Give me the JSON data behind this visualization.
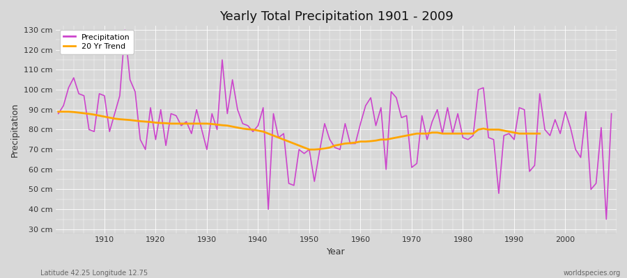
{
  "title": "Yearly Total Precipitation 1901 - 2009",
  "xlabel": "Year",
  "ylabel": "Precipitation",
  "subtitle_left": "Latitude 42.25 Longitude 12.75",
  "subtitle_right": "worldspecies.org",
  "years": [
    1901,
    1902,
    1903,
    1904,
    1905,
    1906,
    1907,
    1908,
    1909,
    1910,
    1911,
    1912,
    1913,
    1914,
    1915,
    1916,
    1917,
    1918,
    1919,
    1920,
    1921,
    1922,
    1923,
    1924,
    1925,
    1926,
    1927,
    1928,
    1929,
    1930,
    1931,
    1932,
    1933,
    1934,
    1935,
    1936,
    1937,
    1938,
    1939,
    1940,
    1941,
    1942,
    1943,
    1944,
    1945,
    1946,
    1947,
    1948,
    1949,
    1950,
    1951,
    1952,
    1953,
    1954,
    1955,
    1956,
    1957,
    1958,
    1959,
    1960,
    1961,
    1962,
    1963,
    1964,
    1965,
    1966,
    1967,
    1968,
    1969,
    1970,
    1971,
    1972,
    1973,
    1974,
    1975,
    1976,
    1977,
    1978,
    1979,
    1980,
    1981,
    1982,
    1983,
    1984,
    1985,
    1986,
    1987,
    1988,
    1989,
    1990,
    1991,
    1992,
    1993,
    1994,
    1995,
    1996,
    1997,
    1998,
    1999,
    2000,
    2001,
    2002,
    2003,
    2004,
    2005,
    2006,
    2007,
    2008,
    2009
  ],
  "precip": [
    88,
    92,
    101,
    106,
    98,
    97,
    80,
    79,
    98,
    97,
    79,
    88,
    97,
    130,
    105,
    99,
    75,
    70,
    91,
    75,
    90,
    72,
    88,
    87,
    82,
    84,
    78,
    90,
    80,
    70,
    88,
    80,
    115,
    88,
    105,
    90,
    83,
    82,
    79,
    82,
    91,
    40,
    88,
    76,
    78,
    53,
    52,
    70,
    68,
    70,
    54,
    69,
    83,
    75,
    71,
    70,
    83,
    73,
    73,
    83,
    92,
    96,
    82,
    91,
    60,
    99,
    96,
    86,
    87,
    61,
    63,
    87,
    75,
    84,
    90,
    78,
    91,
    78,
    88,
    76,
    75,
    77,
    100,
    101,
    76,
    75,
    48,
    77,
    78,
    75,
    91,
    90,
    59,
    62,
    98,
    80,
    77,
    85,
    78,
    89,
    81,
    70,
    66,
    89,
    50,
    53,
    81,
    35,
    88
  ],
  "trend": [
    89.0,
    89.0,
    89.0,
    88.8,
    88.5,
    88.2,
    87.9,
    87.5,
    87.0,
    86.5,
    86.0,
    85.5,
    85.2,
    85.0,
    84.8,
    84.5,
    84.2,
    84.0,
    83.8,
    83.5,
    83.3,
    83.2,
    83.0,
    83.0,
    83.0,
    83.0,
    83.0,
    83.0,
    83.0,
    83.0,
    82.8,
    82.5,
    82.2,
    82.0,
    81.5,
    81.0,
    80.5,
    80.2,
    80.0,
    79.5,
    79.0,
    78.0,
    77.0,
    76.0,
    75.0,
    74.0,
    73.0,
    72.0,
    71.0,
    70.0,
    70.0,
    70.2,
    70.5,
    71.0,
    72.0,
    72.5,
    73.0,
    73.2,
    73.5,
    74.0,
    74.0,
    74.2,
    74.5,
    75.0,
    75.0,
    75.5,
    76.0,
    76.5,
    77.0,
    77.5,
    78.0,
    78.0,
    78.0,
    78.5,
    78.5,
    78.0,
    78.0,
    78.0,
    78.0,
    78.0,
    78.0,
    78.0,
    80.0,
    80.5,
    80.0,
    80.0,
    80.0,
    79.5,
    79.0,
    78.5,
    78.0,
    78.0,
    78.0,
    78.0,
    78.0,
    null,
    null,
    null,
    null,
    null,
    null,
    null,
    null,
    null,
    null,
    null,
    null,
    null,
    null,
    null
  ],
  "precip_color": "#CC44CC",
  "trend_color": "#FFA500",
  "bg_color": "#D8D8D8",
  "plot_bg_color": "#D8D8D8",
  "grid_color": "#BBBBBB",
  "ylim": [
    28,
    132
  ],
  "yticks": [
    30,
    40,
    50,
    60,
    70,
    80,
    90,
    100,
    110,
    120,
    130
  ],
  "xlim": [
    1900.5,
    2010
  ],
  "xticks": [
    1910,
    1920,
    1930,
    1940,
    1950,
    1960,
    1970,
    1980,
    1990,
    2000
  ]
}
